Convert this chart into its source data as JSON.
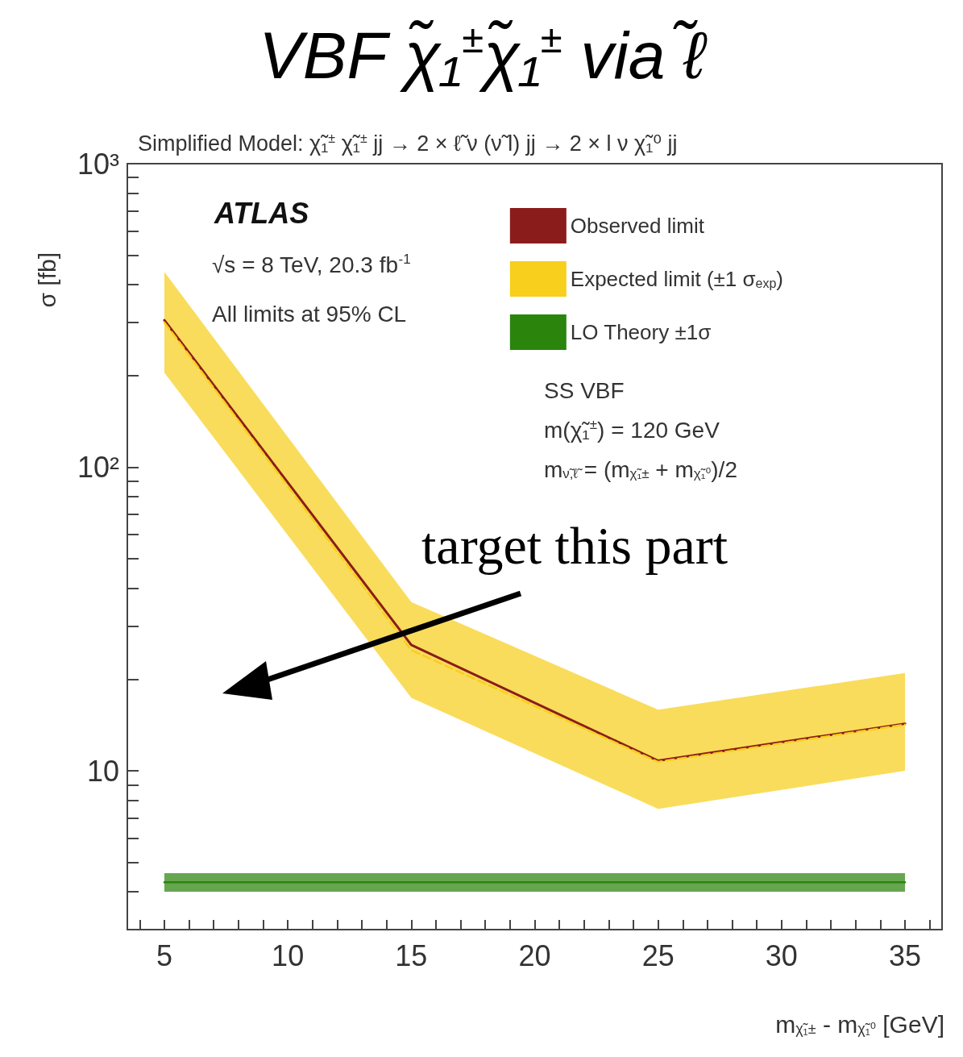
{
  "chart_data": {
    "type": "line",
    "title": "VBF χ̃₁$^{±}$χ̃₁$^{±}$ via ℓ̃",
    "subtitle": "Simplified Model: χ̃₁$^{±}$ χ̃₁$^{±}$ jj → 2 × ℓ̃ ν (ν̃ l) jj → 2 × l ν χ̃₁⁰ jj",
    "xlabel": "m$_{χ̃₁±}$ - m$_{χ̃₁⁰}$ [GeV]",
    "ylabel": "σ [fb]",
    "x": [
      5,
      15,
      25,
      35
    ],
    "series": [
      {
        "name": "Observed limit",
        "color": "#8b1c1c",
        "values": [
          305,
          26,
          10.8,
          14.3
        ]
      },
      {
        "name": "Expected limit (±1 σ$_{exp}$)",
        "color": "#f7cf1c",
        "line_style": "dashed",
        "values": [
          300,
          25,
          10.7,
          14.2
        ],
        "lower": [
          205,
          17.4,
          7.5,
          10
        ],
        "upper": [
          440,
          36,
          15.9,
          21
        ]
      },
      {
        "name": "LO Theory ±1σ",
        "color": "#2b840c",
        "values": [
          4.3,
          4.3,
          4.3,
          4.3
        ],
        "lower": [
          4.0,
          4.0,
          4.0,
          4.0
        ],
        "upper": [
          4.6,
          4.6,
          4.6,
          4.6
        ]
      }
    ],
    "log": "y",
    "xlim": [
      3.5,
      36.5
    ],
    "ylim": [
      3,
      1000
    ],
    "xticks": [
      {
        "value": 4,
        "label": null
      },
      5,
      {
        "value": 6,
        "label": null
      },
      {
        "value": 7,
        "label": null
      },
      {
        "value": 8,
        "label": null
      },
      {
        "value": 9,
        "label": null
      },
      10,
      {
        "value": 11,
        "label": null
      },
      {
        "value": 12,
        "label": null
      },
      {
        "value": 13,
        "label": null
      },
      {
        "value": 14,
        "label": null
      },
      15,
      {
        "value": 16,
        "label": null
      },
      {
        "value": 17,
        "label": null
      },
      {
        "value": 18,
        "label": null
      },
      {
        "value": 19,
        "label": null
      },
      20,
      {
        "value": 21,
        "label": null
      },
      {
        "value": 22,
        "label": null
      },
      {
        "value": 23,
        "label": null
      },
      {
        "value": 24,
        "label": null
      },
      25,
      {
        "value": 26,
        "label": null
      },
      {
        "value": 27,
        "label": null
      },
      {
        "value": 28,
        "label": null
      },
      {
        "value": 29,
        "label": null
      },
      30,
      {
        "value": 31,
        "label": null
      },
      {
        "value": 32,
        "label": null
      },
      {
        "value": 33,
        "label": null
      },
      {
        "value": 34,
        "label": null
      },
      35,
      {
        "value": 36,
        "label": null
      }
    ],
    "yticks": [
      {
        "value": 4,
        "label": null
      },
      {
        "value": 5,
        "label": null
      },
      {
        "value": 6,
        "label": null
      },
      {
        "value": 7,
        "label": null
      },
      {
        "value": 8,
        "label": null
      },
      {
        "value": 9,
        "label": null
      },
      10,
      {
        "value": 20,
        "label": null
      },
      {
        "value": 30,
        "label": null
      },
      {
        "value": 40,
        "label": null
      },
      {
        "value": 50,
        "label": null
      },
      {
        "value": 60,
        "label": null
      },
      {
        "value": 70,
        "label": null
      },
      {
        "value": 80,
        "label": null
      },
      {
        "value": 90,
        "label": null
      },
      {
        "value": 100,
        "label": "10²"
      },
      {
        "value": 200,
        "label": null
      },
      {
        "value": 300,
        "label": null
      },
      {
        "value": 400,
        "label": null
      },
      {
        "value": 500,
        "label": null
      },
      {
        "value": 600,
        "label": null
      },
      {
        "value": 700,
        "label": null
      },
      {
        "value": 800,
        "label": null
      },
      {
        "value": 900,
        "label": null
      },
      {
        "value": 1000,
        "label": "10³"
      }
    ],
    "grid": false,
    "legend": "top right",
    "marker": "none",
    "annotations": [
      "ATLAS",
      "√s = 8 TeV, 20.3 fb$^{-1}$",
      "All limits at 95% CL",
      "SS VBF",
      "m(χ̃₁$^{±}$) = 120 GeV",
      "m$_{ν̃,ℓ̃}$ = (m$_{χ̃₁±}$ + m$_{χ̃₁⁰}$)/2",
      "target this part"
    ]
  }
}
